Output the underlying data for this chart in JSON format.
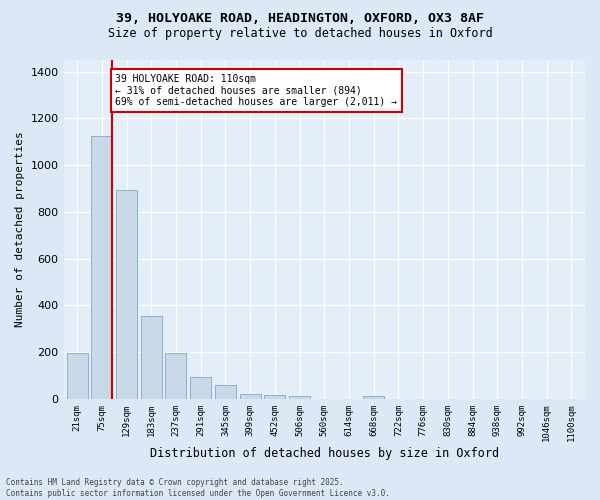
{
  "title_line1": "39, HOLYOAKE ROAD, HEADINGTON, OXFORD, OX3 8AF",
  "title_line2": "Size of property relative to detached houses in Oxford",
  "xlabel": "Distribution of detached houses by size in Oxford",
  "ylabel": "Number of detached properties",
  "bar_labels": [
    "21sqm",
    "75sqm",
    "129sqm",
    "183sqm",
    "237sqm",
    "291sqm",
    "345sqm",
    "399sqm",
    "452sqm",
    "506sqm",
    "560sqm",
    "614sqm",
    "668sqm",
    "722sqm",
    "776sqm",
    "830sqm",
    "884sqm",
    "938sqm",
    "992sqm",
    "1046sqm",
    "1100sqm"
  ],
  "bar_values": [
    197,
    1125,
    893,
    354,
    197,
    95,
    58,
    22,
    17,
    12,
    0,
    0,
    12,
    0,
    0,
    0,
    0,
    0,
    0,
    0,
    0
  ],
  "bar_color": "#c9d9e8",
  "bar_edge_color": "#7aaac8",
  "annotation_line1": "39 HOLYOAKE ROAD: 110sqm",
  "annotation_line2": "← 31% of detached houses are smaller (894)",
  "annotation_line3": "69% of semi-detached houses are larger (2,011) →",
  "annotation_box_color": "#ffffff",
  "annotation_box_edge_color": "#cc0000",
  "ylim": [
    0,
    1450
  ],
  "yticks": [
    0,
    200,
    400,
    600,
    800,
    1000,
    1200,
    1400
  ],
  "footer_line1": "Contains HM Land Registry data © Crown copyright and database right 2025.",
  "footer_line2": "Contains public sector information licensed under the Open Government Licence v3.0.",
  "bg_color": "#dce8f5",
  "plot_bg_color": "#e4eef8",
  "grid_color": "#ffffff",
  "vline_color": "#cc0000",
  "vline_x": 1.43
}
